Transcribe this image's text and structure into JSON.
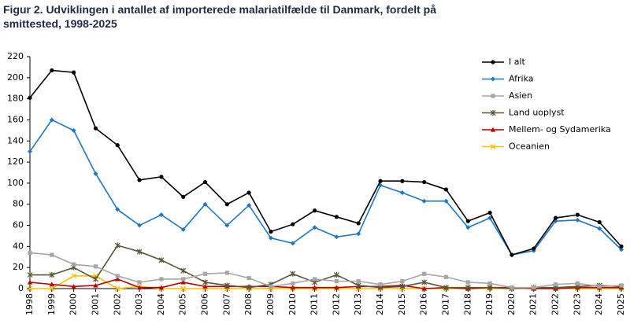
{
  "chart_data": {
    "type": "line",
    "title": "Figur 2. Udviklingen i antallet af importerede malariatilfælde til Danmark, fordelt på smittested, 1998-2025",
    "categories": [
      "1998",
      "1999",
      "2000",
      "2001",
      "2002",
      "2003",
      "2004",
      "2005",
      "2006",
      "2007",
      "2008",
      "2009",
      "2010",
      "2011",
      "2012",
      "2013",
      "2014",
      "2015",
      "2016",
      "2017",
      "2018",
      "2019",
      "2020",
      "2021",
      "2022",
      "2023",
      "2024",
      "2025"
    ],
    "ylim": [
      0,
      220
    ],
    "yticks": [
      0,
      20,
      40,
      60,
      80,
      100,
      120,
      140,
      160,
      180,
      200,
      220
    ],
    "grid": false,
    "legend": "top-right",
    "series": [
      {
        "name": "I alt",
        "color": "#000000",
        "marker": "circle",
        "values": [
          181,
          207,
          205,
          152,
          136,
          103,
          106,
          87,
          101,
          80,
          91,
          54,
          61,
          74,
          68,
          62,
          102,
          102,
          101,
          94,
          64,
          72,
          32,
          38,
          67,
          70,
          63,
          40
        ]
      },
      {
        "name": "Afrika",
        "color": "#1f77c4",
        "marker": "diamond",
        "values": [
          130,
          160,
          150,
          109,
          75,
          60,
          70,
          56,
          80,
          60,
          79,
          48,
          43,
          58,
          49,
          52,
          98,
          91,
          83,
          83,
          58,
          67,
          32,
          36,
          64,
          65,
          57,
          37
        ]
      },
      {
        "name": "Asien",
        "color": "#a6a6a6",
        "marker": "square",
        "values": [
          34,
          32,
          23,
          21,
          12,
          6,
          9,
          9,
          14,
          15,
          10,
          2,
          5,
          9,
          7,
          7,
          4,
          7,
          14,
          11,
          6,
          5,
          1,
          1,
          4,
          5,
          2,
          3
        ]
      },
      {
        "name": "Land uoplyst",
        "color": "#5b5637",
        "marker": "star",
        "values": [
          13,
          13,
          20,
          9,
          41,
          35,
          27,
          17,
          6,
          3,
          1,
          4,
          14,
          6,
          13,
          3,
          1,
          2,
          6,
          1,
          1,
          1,
          0,
          1,
          1,
          2,
          3,
          2
        ]
      },
      {
        "name": "Mellem- og Sydamerika",
        "color": "#c00000",
        "marker": "triangle",
        "values": [
          6,
          4,
          2,
          3,
          9,
          1,
          1,
          6,
          2,
          2,
          2,
          2,
          1,
          1,
          1,
          2,
          2,
          3,
          0,
          1,
          0,
          1,
          1,
          0,
          0,
          1,
          1,
          1
        ]
      },
      {
        "name": "Oceanien",
        "color": "#ffc000",
        "marker": "x",
        "values": [
          0,
          0,
          12,
          12,
          0,
          2,
          0,
          0,
          0,
          0,
          0,
          0,
          0,
          0,
          0,
          0,
          0,
          0,
          0,
          0,
          0,
          0,
          0,
          0,
          0,
          0,
          0,
          0
        ]
      }
    ]
  }
}
